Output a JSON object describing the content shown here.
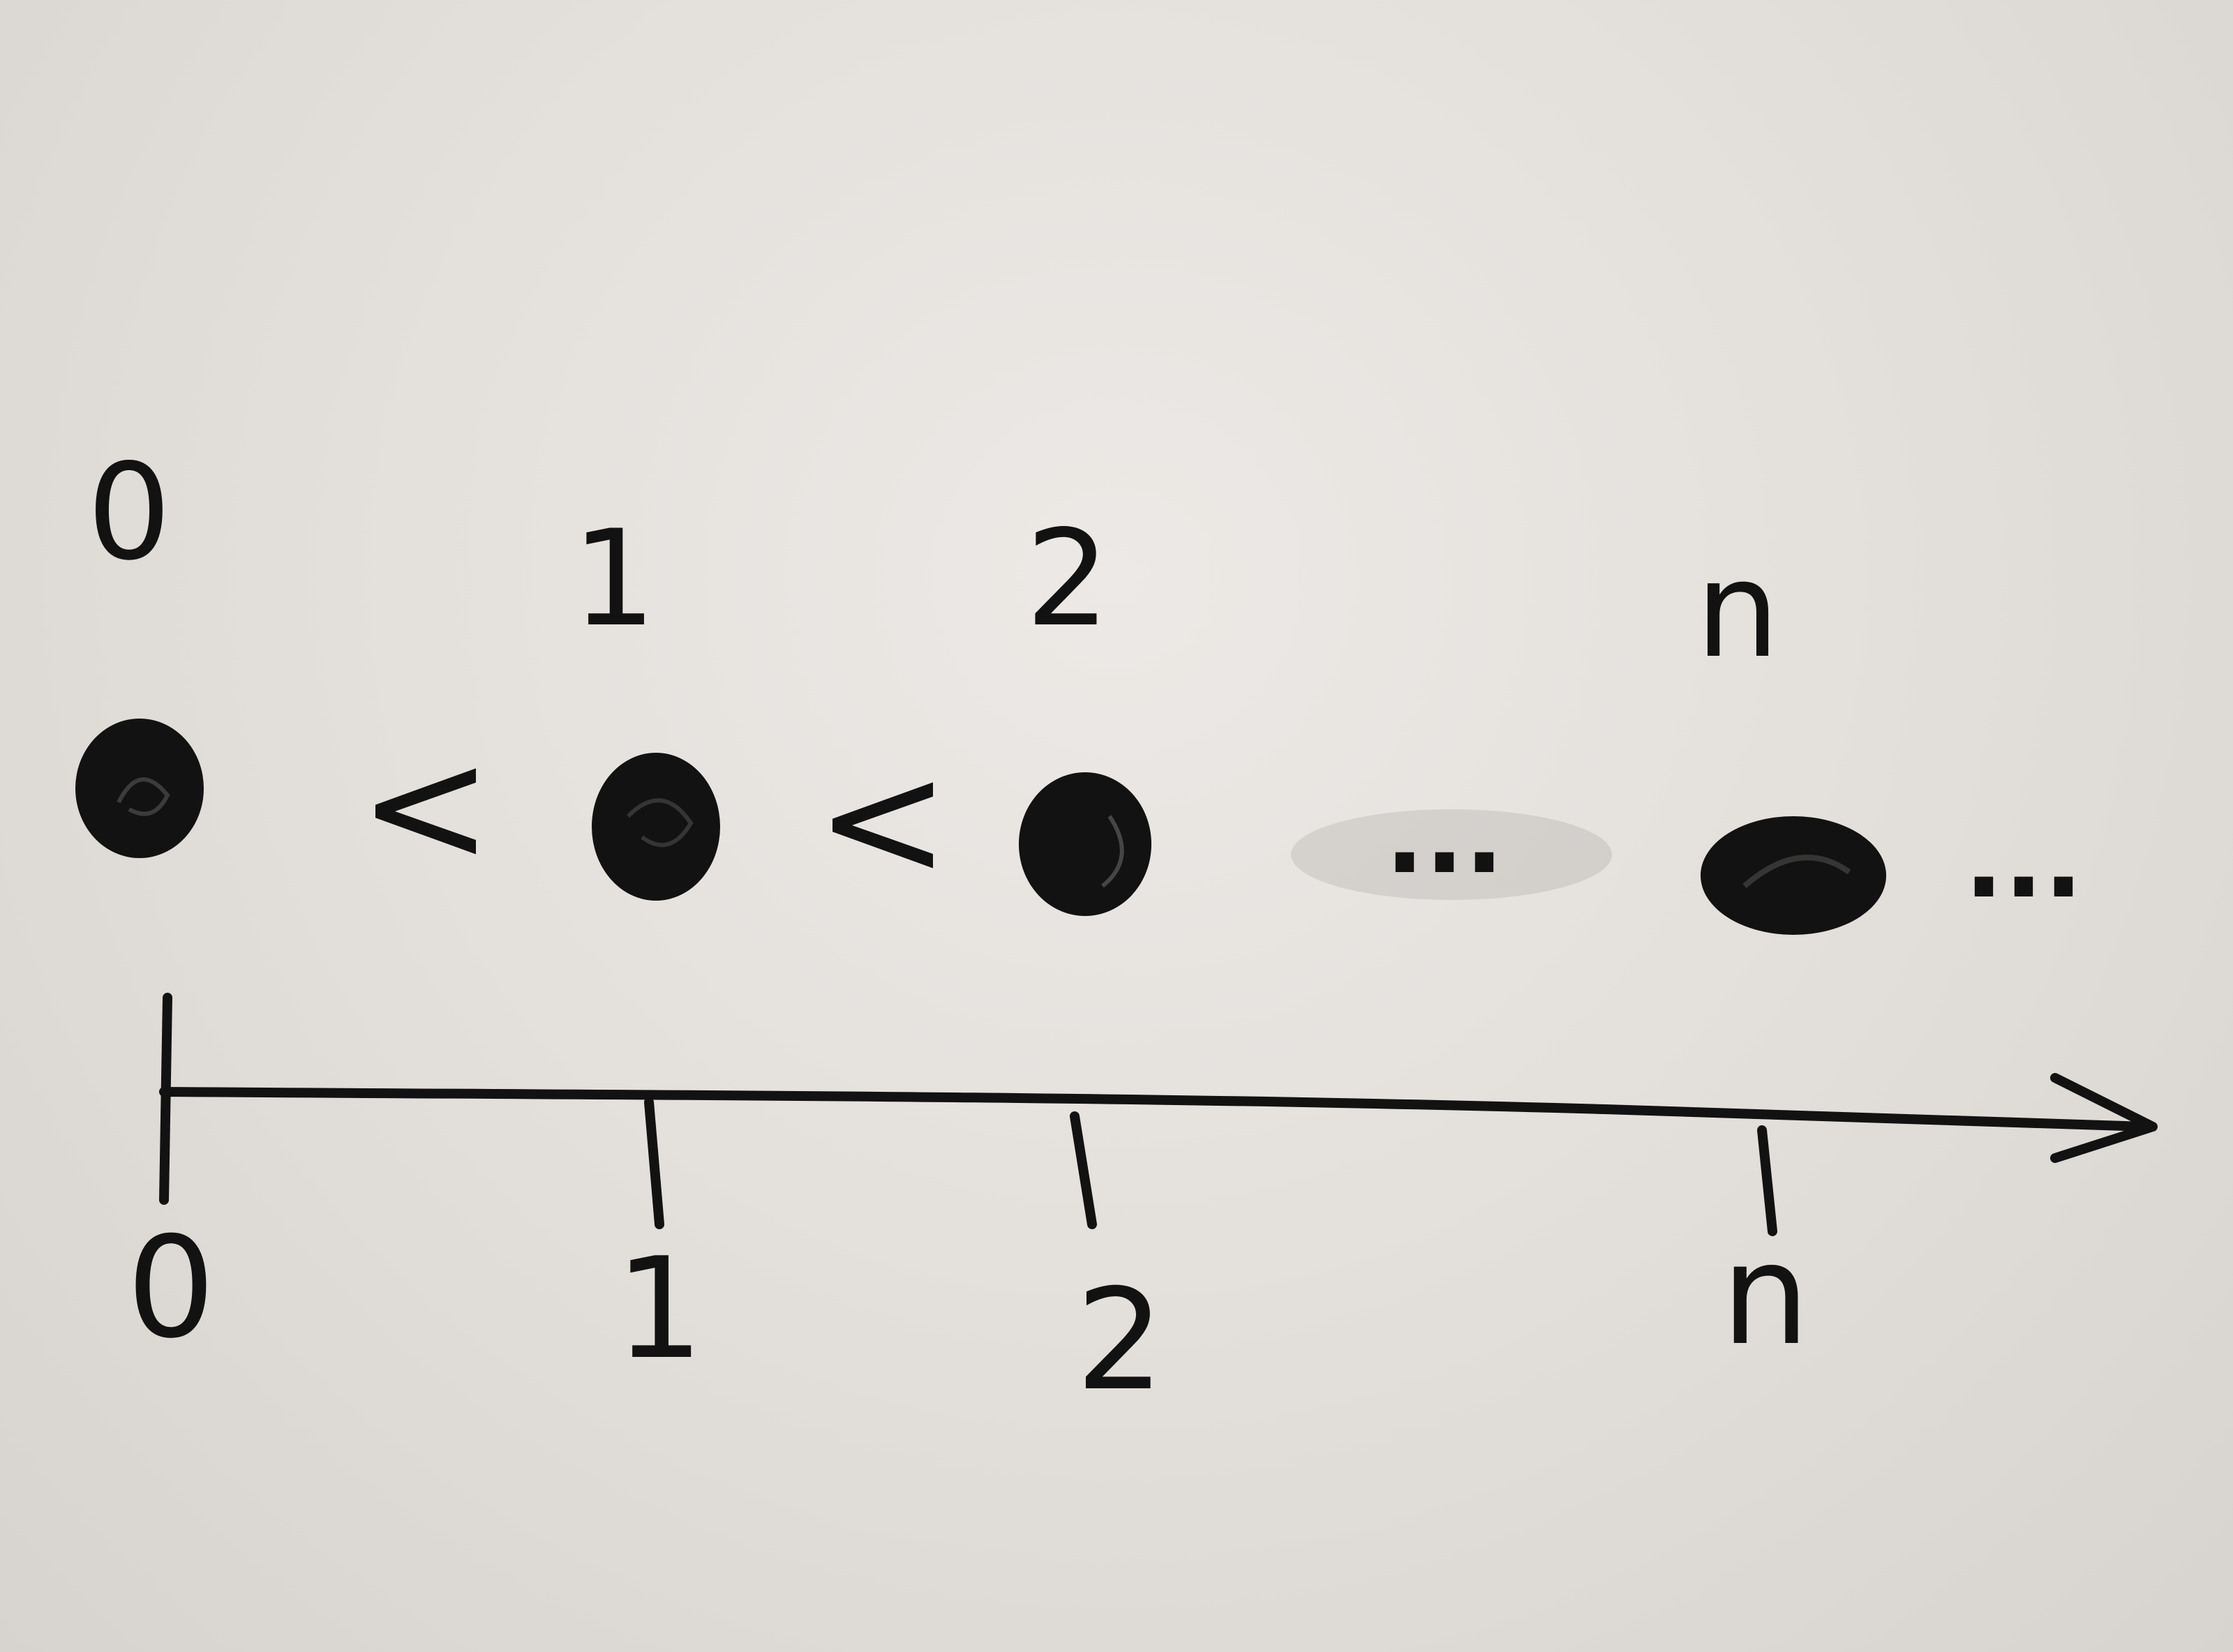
{
  "diagram": {
    "top_labels": [
      "0",
      "1",
      "2",
      "n"
    ],
    "comparisons": [
      "<",
      "<"
    ],
    "ellipsis_middle": "...",
    "ellipsis_end": "...",
    "axis_labels": [
      "0",
      "1",
      "2",
      "n"
    ]
  },
  "colors": {
    "marker": "#121212",
    "board": "#e6e2de",
    "smudge": "#9a9692"
  }
}
